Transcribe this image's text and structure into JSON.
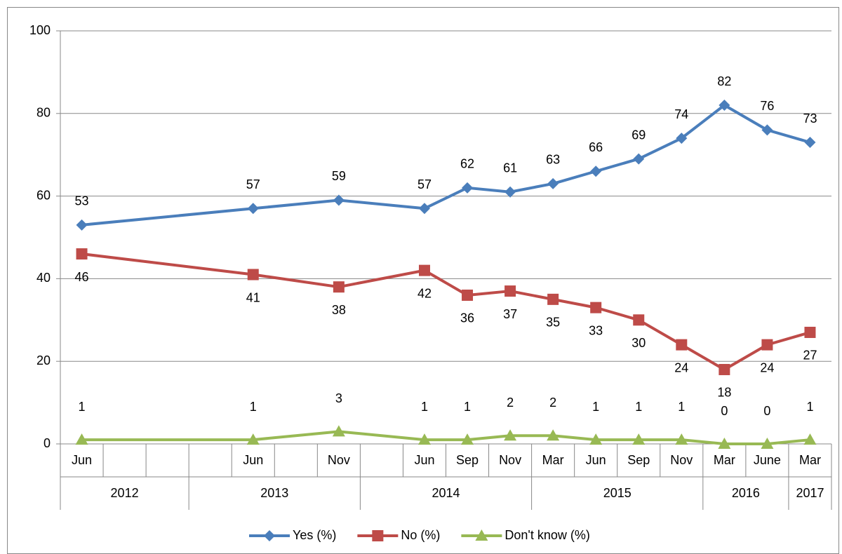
{
  "chart_data": {
    "type": "line",
    "categories": [
      "Jun",
      null,
      null,
      null,
      "Jun",
      null,
      "Nov",
      null,
      "Jun",
      "Sep",
      "Nov",
      "Mar",
      "Jun",
      "Sep",
      "Nov",
      "Mar",
      "June",
      "Mar"
    ],
    "year_groups": [
      {
        "label": "2012",
        "span": 3
      },
      {
        "label": "2013",
        "span": 4
      },
      {
        "label": "2014",
        "span": 4
      },
      {
        "label": "2015",
        "span": 4
      },
      {
        "label": "2016",
        "span": 2
      },
      {
        "label": "2017",
        "span": 1
      }
    ],
    "connect_gaps": true,
    "series": [
      {
        "name": "Yes (%)",
        "color": "#4a7ebb",
        "marker": "diamond",
        "label_side": "above",
        "values": [
          53,
          null,
          null,
          null,
          57,
          null,
          59,
          null,
          57,
          62,
          61,
          63,
          66,
          69,
          74,
          82,
          76,
          73
        ]
      },
      {
        "name": "No (%)",
        "color": "#be4b48",
        "marker": "square",
        "label_side": "below",
        "values": [
          46,
          null,
          null,
          null,
          41,
          null,
          38,
          null,
          42,
          36,
          37,
          35,
          33,
          30,
          24,
          18,
          24,
          27
        ]
      },
      {
        "name": "Don't know (%)",
        "color": "#98b954",
        "marker": "triangle",
        "label_side": "above",
        "values": [
          1,
          null,
          null,
          null,
          1,
          null,
          3,
          null,
          1,
          1,
          2,
          2,
          1,
          1,
          1,
          0,
          0,
          1
        ]
      }
    ],
    "ylim": [
      0,
      100
    ],
    "yticks": [
      0,
      20,
      40,
      60,
      80,
      100
    ],
    "grid": true,
    "legend": "bottom"
  }
}
